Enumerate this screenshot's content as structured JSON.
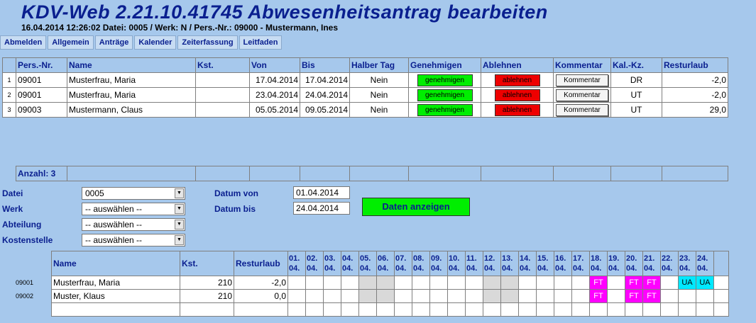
{
  "header": {
    "title": "KDV-Web 2.21.10.41745 Abwesenheitsantrag bearbeiten",
    "subtitle": "16.04.2014 12:26:02     Datei: 0005 / Werk: N / Pers.-Nr.: 09000 - Mustermann, Ines"
  },
  "nav": [
    "Abmelden",
    "Allgemein",
    "Anträge",
    "Kalender",
    "Zeiterfassung",
    "Leitfaden"
  ],
  "requests": {
    "columns": [
      "Pers.-Nr.",
      "Name",
      "Kst.",
      "Von",
      "Bis",
      "Halber Tag",
      "Genehmigen",
      "Ablehnen",
      "Kommentar",
      "Kal.-Kz.",
      "Resturlaub"
    ],
    "approve_label": "genehmigen",
    "reject_label": "ablehnen",
    "comment_label": "Kommentar",
    "rows": [
      {
        "num": "1",
        "pers": "09001",
        "name": "Musterfrau, Maria",
        "kst": "",
        "von": "17.04.2014",
        "bis": "17.04.2014",
        "halb": "Nein",
        "kz": "DR",
        "rest": "-2,0"
      },
      {
        "num": "2",
        "pers": "09001",
        "name": "Musterfrau, Maria",
        "kst": "",
        "von": "23.04.2014",
        "bis": "24.04.2014",
        "halb": "Nein",
        "kz": "UT",
        "rest": "-2,0"
      },
      {
        "num": "3",
        "pers": "09003",
        "name": "Mustermann, Claus",
        "kst": "",
        "von": "05.05.2014",
        "bis": "09.05.2014",
        "halb": "Nein",
        "kz": "UT",
        "rest": "29,0"
      }
    ],
    "count_label": "Anzahl: 3"
  },
  "filters": {
    "datei_label": "Datei",
    "datei_value": "0005",
    "werk_label": "Werk",
    "werk_value": "-- auswählen --",
    "abteilung_label": "Abteilung",
    "abteilung_value": "-- auswählen --",
    "kostenstelle_label": "Kostenstelle",
    "kostenstelle_value": "-- auswählen --",
    "datum_von_label": "Datum von",
    "datum_von_value": "01.04.2014",
    "datum_bis_label": "Datum bis",
    "datum_bis_value": "24.04.2014",
    "show_button": "Daten anzeigen"
  },
  "calendar": {
    "col_name": "Name",
    "col_kst": "Kst.",
    "col_rest": "Resturlaub",
    "days": [
      "01.",
      "02.",
      "03.",
      "04.",
      "05.",
      "06.",
      "07.",
      "08.",
      "09.",
      "10.",
      "11.",
      "12.",
      "13.",
      "14.",
      "15.",
      "16.",
      "17.",
      "18.",
      "19.",
      "20.",
      "21.",
      "22.",
      "23.",
      "24."
    ],
    "month": "04.",
    "rows": [
      {
        "id": "09001",
        "name": "Musterfrau, Maria",
        "kst": "210",
        "rest": "-2,0",
        "cells": [
          "",
          "",
          "",
          "",
          "g",
          "g",
          "",
          "",
          "",
          "",
          "",
          "g",
          "g",
          "",
          "",
          "",
          "",
          "FT",
          "",
          "FT",
          "FT",
          "",
          "UA",
          "UA"
        ]
      },
      {
        "id": "09002",
        "name": "Muster, Klaus",
        "kst": "210",
        "rest": "0,0",
        "cells": [
          "",
          "",
          "",
          "",
          "g",
          "g",
          "",
          "",
          "",
          "",
          "",
          "g",
          "g",
          "",
          "",
          "",
          "",
          "FT",
          "",
          "FT",
          "FT",
          "",
          "",
          ""
        ]
      }
    ]
  }
}
